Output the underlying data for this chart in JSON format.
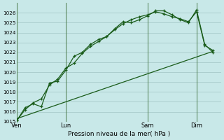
{
  "xlabel": "Pression niveau de la mer( hPa )",
  "bg_color": "#c8e8e8",
  "grid_color": "#a0c4c4",
  "line_color": "#1a5c1a",
  "vline_color": "#4a7a4a",
  "ylim": [
    1015,
    1027
  ],
  "yticks": [
    1015,
    1016,
    1017,
    1018,
    1019,
    1020,
    1021,
    1022,
    1023,
    1024,
    1025,
    1026
  ],
  "day_labels": [
    "Ven",
    "Lun",
    "Sam",
    "Dim"
  ],
  "day_positions": [
    0,
    3,
    8,
    11
  ],
  "xlim": [
    0,
    12.5
  ],
  "series1_x": [
    0,
    0.5,
    1.0,
    1.5,
    2.0,
    2.5,
    3.0,
    3.5,
    4.0,
    4.5,
    5.0,
    5.5,
    6.0,
    6.5,
    7.0,
    7.5,
    8.0,
    8.5,
    9.0,
    9.5,
    10.0,
    10.5,
    11.0,
    11.5,
    12.0
  ],
  "series1_y": [
    1015.1,
    1016.4,
    1016.8,
    1016.5,
    1018.9,
    1019.1,
    1020.2,
    1021.6,
    1022.0,
    1022.8,
    1023.3,
    1023.6,
    1024.4,
    1025.1,
    1025.0,
    1025.3,
    1025.7,
    1026.2,
    1026.2,
    1025.8,
    1025.3,
    1025.0,
    1026.3,
    1022.8,
    1022.0
  ],
  "series2_x": [
    0,
    0.5,
    1.0,
    1.5,
    2.0,
    2.5,
    3.0,
    3.5,
    4.0,
    4.5,
    5.0,
    5.5,
    6.0,
    6.5,
    7.0,
    7.5,
    8.0,
    8.5,
    9.0,
    9.5,
    10.0,
    10.5,
    11.0,
    11.5,
    12.0
  ],
  "series2_y": [
    1015.1,
    1016.2,
    1016.9,
    1017.3,
    1018.7,
    1019.3,
    1020.4,
    1020.9,
    1021.9,
    1022.6,
    1023.1,
    1023.6,
    1024.3,
    1024.9,
    1025.3,
    1025.6,
    1025.8,
    1026.1,
    1025.9,
    1025.6,
    1025.4,
    1025.1,
    1026.1,
    1022.7,
    1022.2
  ],
  "series3_x": [
    0,
    12.0
  ],
  "series3_y": [
    1015.3,
    1022.1
  ]
}
